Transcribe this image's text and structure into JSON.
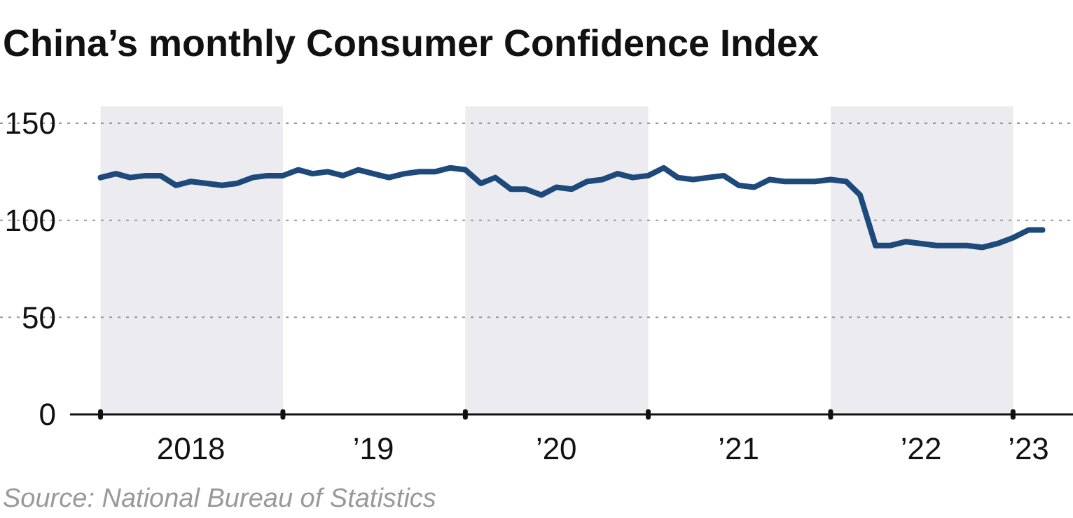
{
  "chart_data": {
    "type": "line",
    "title": "China’s monthly Consumer Confidence Index",
    "annotations": [
      "Source: National Bureau of Statistics"
    ],
    "x": [
      "2018-01",
      "2018-02",
      "2018-03",
      "2018-04",
      "2018-05",
      "2018-06",
      "2018-07",
      "2018-08",
      "2018-09",
      "2018-10",
      "2018-11",
      "2018-12",
      "2019-01",
      "2019-02",
      "2019-03",
      "2019-04",
      "2019-05",
      "2019-06",
      "2019-07",
      "2019-08",
      "2019-09",
      "2019-10",
      "2019-11",
      "2019-12",
      "2020-01",
      "2020-02",
      "2020-03",
      "2020-04",
      "2020-05",
      "2020-06",
      "2020-07",
      "2020-08",
      "2020-09",
      "2020-10",
      "2020-11",
      "2020-12",
      "2021-01",
      "2021-02",
      "2021-03",
      "2021-04",
      "2021-05",
      "2021-06",
      "2021-07",
      "2021-08",
      "2021-09",
      "2021-10",
      "2021-11",
      "2021-12",
      "2022-01",
      "2022-02",
      "2022-03",
      "2022-04",
      "2022-05",
      "2022-06",
      "2022-07",
      "2022-08",
      "2022-09",
      "2022-10",
      "2022-11",
      "2022-12",
      "2023-01",
      "2023-02",
      "2023-03"
    ],
    "series": [
      {
        "color": "#1d4a7a",
        "values": [
          122,
          124,
          122,
          123,
          123,
          118,
          120,
          119,
          118,
          119,
          122,
          123,
          123,
          126,
          124,
          125,
          123,
          126,
          124,
          122,
          124,
          125,
          125,
          127,
          126,
          119,
          122,
          116,
          116,
          113,
          117,
          116,
          120,
          121,
          124,
          122,
          123,
          127,
          122,
          121,
          122,
          123,
          118,
          117,
          121,
          120,
          120,
          120,
          121,
          120,
          113,
          87,
          87,
          89,
          88,
          87,
          87,
          87,
          86,
          88,
          91,
          95,
          95
        ]
      }
    ],
    "xlim": [
      "2017-11",
      "2023-05"
    ],
    "ylim": [
      0,
      150
    ],
    "yticks": [
      0,
      50,
      100,
      150
    ],
    "xticks": [
      {
        "value": "2018-01",
        "label": null
      },
      {
        "value": "2018-07",
        "label": "2018"
      },
      {
        "value": "2019-01",
        "label": null
      },
      {
        "value": "2019-07",
        "label": "’19"
      },
      {
        "value": "2020-01",
        "label": null
      },
      {
        "value": "2020-07",
        "label": "’20"
      },
      {
        "value": "2021-01",
        "label": null
      },
      {
        "value": "2021-07",
        "label": "’21"
      },
      {
        "value": "2022-01",
        "label": null
      },
      {
        "value": "2022-07",
        "label": "’22"
      },
      {
        "value": "2023-01",
        "label": null
      },
      {
        "value": "2023-02",
        "label": "’23"
      }
    ],
    "bands": [
      {
        "axis": "x",
        "from": "2018-01",
        "to": "2019-01",
        "color": "#ececf0"
      },
      {
        "axis": "x",
        "from": "2020-01",
        "to": "2021-01",
        "color": "#ececf0"
      },
      {
        "axis": "x",
        "from": "2022-01",
        "to": "2023-01",
        "color": "#ececf0"
      }
    ],
    "grid": "y",
    "marker": "none",
    "line_style": "solid"
  }
}
